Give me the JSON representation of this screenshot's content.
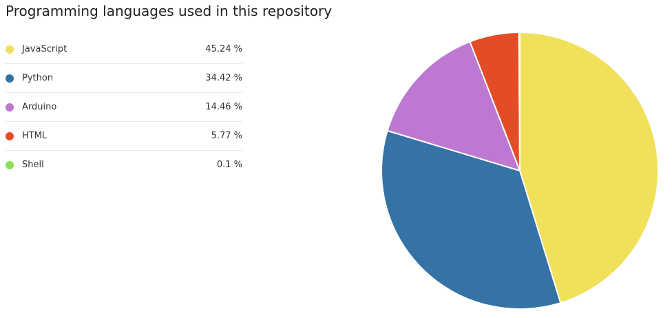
{
  "header": {
    "title": "Programming languages used in this repository"
  },
  "legend": {
    "items": [
      {
        "name": "JavaScript",
        "percent_label": "45.24 %",
        "color": "#f1e05a"
      },
      {
        "name": "Python",
        "percent_label": "34.42 %",
        "color": "#3572a5"
      },
      {
        "name": "Arduino",
        "percent_label": "14.46 %",
        "color": "#bd79d1"
      },
      {
        "name": "HTML",
        "percent_label": "5.77 %",
        "color": "#e34c26"
      },
      {
        "name": "Shell",
        "percent_label": "0.1 %",
        "color": "#89e051"
      }
    ]
  },
  "chart_data": {
    "type": "pie",
    "title": "Programming languages used in this repository",
    "categories": [
      "JavaScript",
      "Python",
      "Arduino",
      "HTML",
      "Shell"
    ],
    "values": [
      45.24,
      34.42,
      14.46,
      5.77,
      0.1
    ],
    "colors": [
      "#f1e05a",
      "#3572a5",
      "#bd79d1",
      "#e34c26",
      "#89e051"
    ],
    "legend_position": "left"
  }
}
